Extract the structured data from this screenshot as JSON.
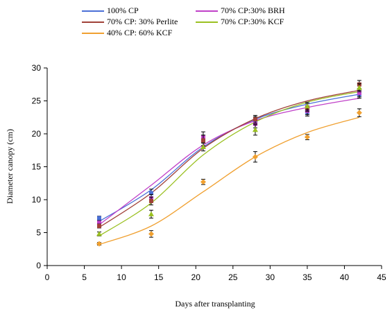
{
  "chart_data": {
    "type": "scatter",
    "title": "",
    "xlabel": "Days after transplanting",
    "ylabel": "Diameter canopy (cm)",
    "xlim": [
      0,
      45
    ],
    "ylim": [
      0,
      30
    ],
    "xticks": [
      0,
      5,
      10,
      15,
      20,
      25,
      30,
      35,
      40,
      45
    ],
    "yticks": [
      0,
      5,
      10,
      15,
      20,
      25,
      30
    ],
    "grid": false,
    "legend_position": "top",
    "series": [
      {
        "name": "100% CP",
        "color": "#4a6fd6",
        "marker": "square",
        "x": [
          7,
          14,
          21,
          28,
          35,
          42
        ],
        "y": [
          7.2,
          11.0,
          19.0,
          22.0,
          23.3,
          26.0
        ],
        "err": [
          0.3,
          0.6,
          0.8,
          0.6,
          0.6,
          0.6
        ],
        "fit": [
          6.7,
          11.5,
          18.0,
          22.2,
          24.5,
          26.0
        ]
      },
      {
        "name": "70% CP:30% BRH",
        "color": "#c040c8",
        "marker": "square",
        "x": [
          7,
          14,
          21,
          28,
          35,
          42
        ],
        "y": [
          6.5,
          10.2,
          19.5,
          21.5,
          23.5,
          26.2
        ],
        "err": [
          0.3,
          0.6,
          0.8,
          0.6,
          0.6,
          0.6
        ],
        "fit": [
          6.2,
          12.2,
          18.3,
          22.0,
          24.0,
          25.4
        ]
      },
      {
        "name": "70% CP: 30% Perlite",
        "color": "#a04038",
        "marker": "square",
        "x": [
          7,
          14,
          21,
          28,
          35,
          42
        ],
        "y": [
          6.0,
          9.8,
          19.0,
          22.2,
          24.0,
          27.5
        ],
        "err": [
          0.3,
          0.6,
          0.8,
          0.6,
          0.6,
          0.6
        ],
        "fit": [
          5.8,
          11.0,
          17.8,
          22.3,
          25.0,
          26.6
        ]
      },
      {
        "name": "70% CP:30% KCF",
        "color": "#9ac020",
        "marker": "triangle",
        "x": [
          7,
          14,
          21,
          28,
          35,
          42
        ],
        "y": [
          4.8,
          7.8,
          18.0,
          20.6,
          24.2,
          27.0
        ],
        "err": [
          0.3,
          0.6,
          0.6,
          0.8,
          0.6,
          0.6
        ],
        "fit": [
          4.5,
          9.5,
          16.8,
          21.8,
          24.8,
          26.4
        ]
      },
      {
        "name": "40% CP: 60% KCF",
        "color": "#f0a030",
        "marker": "diamond",
        "x": [
          7,
          14,
          21,
          28,
          35,
          42
        ],
        "y": [
          3.3,
          4.8,
          12.7,
          16.5,
          19.5,
          23.2
        ],
        "err": [
          0.2,
          0.5,
          0.4,
          0.8,
          0.4,
          0.6
        ],
        "fit": [
          3.2,
          6.0,
          11.2,
          16.5,
          20.2,
          22.5
        ]
      }
    ]
  }
}
